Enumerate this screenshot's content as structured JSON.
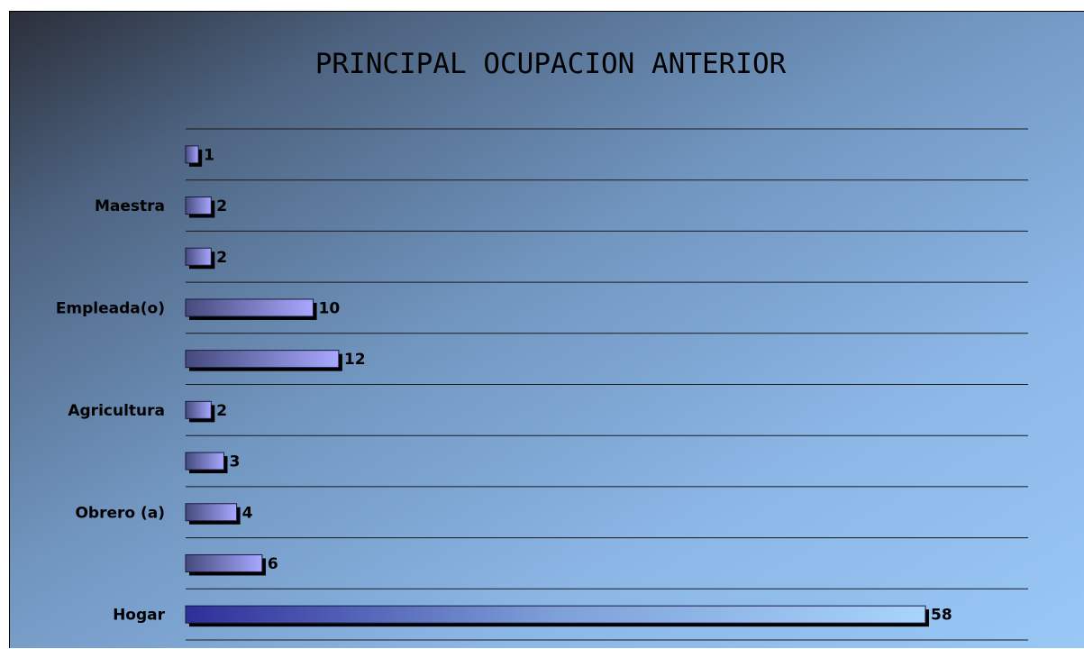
{
  "chart_data": {
    "type": "bar",
    "orientation": "horizontal",
    "title": "PRINCIPAL OCUPACION ANTERIOR",
    "xlabel": "",
    "ylabel": "",
    "xlim": [
      0,
      58
    ],
    "grid": true,
    "legend": "none",
    "categories": [
      "",
      "Maestra",
      "",
      "Empleada(o)",
      "",
      "Agricultura",
      "",
      "Obrero (a)",
      "",
      "Hogar"
    ],
    "values": [
      1,
      2,
      2,
      10,
      12,
      2,
      3,
      4,
      6,
      58
    ],
    "value_labels": [
      "1",
      "2",
      "2",
      "10",
      "12",
      "2",
      "3",
      "4",
      "6",
      "58"
    ],
    "colors": {
      "bar_light": "#a8a8ff",
      "bar_dark": "#404a80",
      "bar_shadow": "#000000"
    }
  }
}
